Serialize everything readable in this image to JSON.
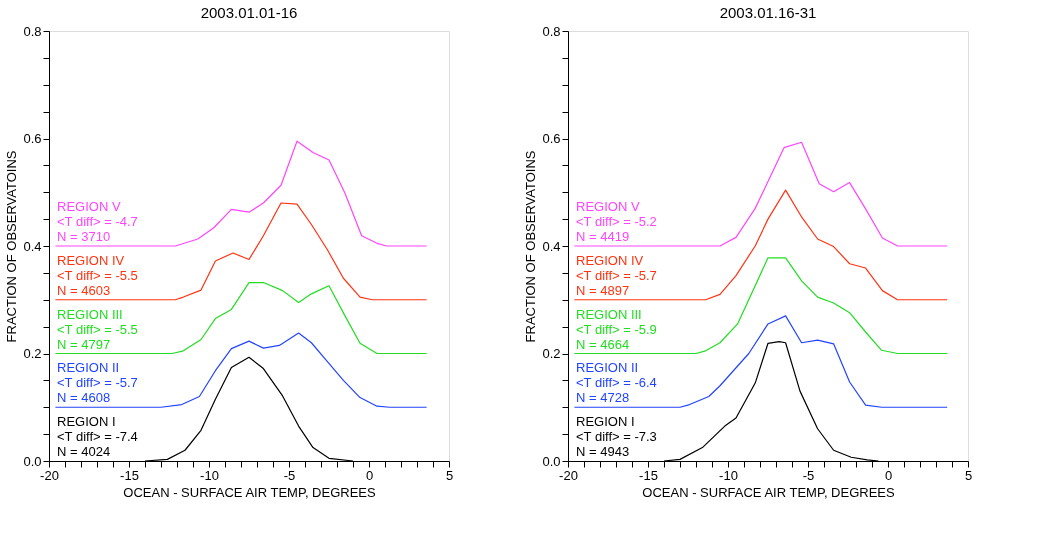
{
  "chart_data": [
    {
      "type": "line",
      "title": "2003.01.01-16",
      "xlabel": "OCEAN - SURFACE AIR TEMP, DEGREES",
      "ylabel": "FRACTION OF OBSERVATOINS",
      "xlim": [
        -20,
        5
      ],
      "ylim": [
        0,
        0.8
      ],
      "grid": false,
      "line_style": "solid",
      "marker": "none",
      "xticks": [
        -20,
        {
          "value": -19,
          "label": null
        },
        {
          "value": -18,
          "label": null
        },
        {
          "value": -17,
          "label": null
        },
        {
          "value": -16,
          "label": null
        },
        -15,
        {
          "value": -14,
          "label": null
        },
        {
          "value": -13,
          "label": null
        },
        {
          "value": -12,
          "label": null
        },
        {
          "value": -11,
          "label": null
        },
        -10,
        {
          "value": -9,
          "label": null
        },
        {
          "value": -8,
          "label": null
        },
        {
          "value": -7,
          "label": null
        },
        {
          "value": -6,
          "label": null
        },
        -5,
        {
          "value": -4,
          "label": null
        },
        {
          "value": -3,
          "label": null
        },
        {
          "value": -2,
          "label": null
        },
        {
          "value": -1,
          "label": null
        },
        0,
        {
          "value": 1,
          "label": null
        },
        {
          "value": 2,
          "label": null
        },
        {
          "value": 3,
          "label": null
        },
        {
          "value": 4,
          "label": null
        },
        5
      ],
      "yticks": [
        {
          "value": 0,
          "label": "0.0"
        },
        {
          "value": 0.05,
          "label": null
        },
        {
          "value": 0.1,
          "label": null
        },
        {
          "value": 0.15,
          "label": null
        },
        {
          "value": 0.2,
          "label": "0.2"
        },
        {
          "value": 0.25,
          "label": null
        },
        {
          "value": 0.3,
          "label": null
        },
        {
          "value": 0.35,
          "label": null
        },
        {
          "value": 0.4,
          "label": "0.4"
        },
        {
          "value": 0.45,
          "label": null
        },
        {
          "value": 0.5,
          "label": null
        },
        {
          "value": 0.55,
          "label": null
        },
        {
          "value": 0.6,
          "label": "0.6"
        },
        {
          "value": 0.65,
          "label": null
        },
        {
          "value": 0.7,
          "label": null
        },
        {
          "value": 0.75,
          "label": null
        },
        {
          "value": 0.8,
          "label": "0.8"
        }
      ],
      "series": [
        {
          "name": "REGION I",
          "color": "#000000",
          "x": [
            -14,
            -12.6,
            -11.5,
            -10.5,
            -9.6,
            -8.6,
            -7.5,
            -6.6,
            -5.4,
            -4.4,
            -3.5,
            -2.5,
            -1.0
          ],
          "values": [
            0,
            0.003,
            0.02,
            0.057,
            0.115,
            0.174,
            0.193,
            0.172,
            0.121,
            0.065,
            0.025,
            0.005,
            0
          ]
        },
        {
          "name": "REGION II",
          "color": "#2244ff",
          "x": [
            -19.6,
            -13.0,
            -11.7,
            -10.6,
            -9.6,
            -8.6,
            -7.5,
            -6.6,
            -5.6,
            -4.4,
            -3.6,
            -2.6,
            -1.6,
            -0.56,
            0.5,
            1.3,
            3.6
          ],
          "values": [
            0.1,
            0.1,
            0.105,
            0.12,
            0.168,
            0.209,
            0.223,
            0.21,
            0.215,
            0.238,
            0.22,
            0.185,
            0.15,
            0.118,
            0.102,
            0.1,
            0.1
          ]
        },
        {
          "name": "REGION III",
          "color": "#22dd22",
          "x": [
            -19.6,
            -12.3,
            -11.6,
            -10.5,
            -9.6,
            -8.6,
            -7.5,
            -6.6,
            -5.4,
            -4.4,
            -3.6,
            -2.5,
            -1.5,
            -0.56,
            0.5,
            3.6
          ],
          "values": [
            0.2,
            0.2,
            0.205,
            0.226,
            0.265,
            0.282,
            0.332,
            0.332,
            0.317,
            0.295,
            0.311,
            0.326,
            0.27,
            0.219,
            0.2,
            0.2
          ]
        },
        {
          "name": "REGION IV",
          "color": "#ff3311",
          "x": [
            -19.6,
            -12.1,
            -11.6,
            -10.5,
            -9.6,
            -8.5,
            -7.5,
            -6.6,
            -5.5,
            -4.5,
            -3.6,
            -2.6,
            -1.6,
            -0.56,
            0.2,
            3.6
          ],
          "values": [
            0.3,
            0.3,
            0.305,
            0.318,
            0.372,
            0.387,
            0.375,
            0.419,
            0.48,
            0.478,
            0.44,
            0.393,
            0.34,
            0.305,
            0.3,
            0.3
          ]
        },
        {
          "name": "REGION V",
          "color": "#ff44ff",
          "x": [
            -19.6,
            -12.1,
            -10.7,
            -9.7,
            -8.6,
            -7.5,
            -6.6,
            -5.5,
            -4.5,
            -3.5,
            -2.5,
            -1.5,
            -0.46,
            0.5,
            1.1,
            3.6
          ],
          "values": [
            0.4,
            0.4,
            0.413,
            0.434,
            0.468,
            0.463,
            0.48,
            0.513,
            0.595,
            0.574,
            0.56,
            0.498,
            0.419,
            0.405,
            0.4,
            0.4
          ]
        }
      ],
      "annotations": [
        "<T diff> = -7.4",
        "N = 4024",
        "<T diff> = -5.7",
        "N = 4608",
        "<T diff> = -5.5",
        "N = 4797",
        "<T diff> = -5.5",
        "N = 4603",
        "<T diff> = -4.7",
        "N = 3710"
      ]
    },
    {
      "type": "line",
      "title": "2003.01.16-31",
      "xlabel": "OCEAN - SURFACE AIR TEMP, DEGREES",
      "ylabel": "FRACTION OF OBSERVATOINS",
      "xlim": [
        -20,
        5
      ],
      "ylim": [
        0,
        0.8
      ],
      "grid": false,
      "line_style": "solid",
      "marker": "none",
      "xticks": [
        -20,
        {
          "value": -19,
          "label": null
        },
        {
          "value": -18,
          "label": null
        },
        {
          "value": -17,
          "label": null
        },
        {
          "value": -16,
          "label": null
        },
        -15,
        {
          "value": -14,
          "label": null
        },
        {
          "value": -13,
          "label": null
        },
        {
          "value": -12,
          "label": null
        },
        {
          "value": -11,
          "label": null
        },
        -10,
        {
          "value": -9,
          "label": null
        },
        {
          "value": -8,
          "label": null
        },
        {
          "value": -7,
          "label": null
        },
        {
          "value": -6,
          "label": null
        },
        -5,
        {
          "value": -4,
          "label": null
        },
        {
          "value": -3,
          "label": null
        },
        {
          "value": -2,
          "label": null
        },
        {
          "value": -1,
          "label": null
        },
        0,
        {
          "value": 1,
          "label": null
        },
        {
          "value": 2,
          "label": null
        },
        {
          "value": 3,
          "label": null
        },
        {
          "value": 4,
          "label": null
        },
        5
      ],
      "yticks": [
        {
          "value": 0,
          "label": "0.0"
        },
        {
          "value": 0.05,
          "label": null
        },
        {
          "value": 0.1,
          "label": null
        },
        {
          "value": 0.15,
          "label": null
        },
        {
          "value": 0.2,
          "label": "0.2"
        },
        {
          "value": 0.25,
          "label": null
        },
        {
          "value": 0.3,
          "label": null
        },
        {
          "value": 0.35,
          "label": null
        },
        {
          "value": 0.4,
          "label": "0.4"
        },
        {
          "value": 0.45,
          "label": null
        },
        {
          "value": 0.5,
          "label": null
        },
        {
          "value": 0.55,
          "label": null
        },
        {
          "value": 0.6,
          "label": "0.6"
        },
        {
          "value": 0.65,
          "label": null
        },
        {
          "value": 0.7,
          "label": null
        },
        {
          "value": 0.75,
          "label": null
        },
        {
          "value": 0.8,
          "label": "0.8"
        }
      ],
      "series": [
        {
          "name": "REGION I",
          "color": "#000000",
          "x": [
            -14,
            -13,
            -11.6,
            -10.2,
            -9.5,
            -8.3,
            -7.5,
            -6.8,
            -6.4,
            -5.5,
            -4.4,
            -3.4,
            -2.3,
            -1.3,
            -0.6
          ],
          "values": [
            0,
            0.003,
            0.025,
            0.065,
            0.08,
            0.145,
            0.219,
            0.222,
            0.22,
            0.13,
            0.06,
            0.02,
            0.007,
            0.002,
            0
          ]
        },
        {
          "name": "REGION II",
          "color": "#2244ff",
          "x": [
            -19.6,
            -13,
            -12.4,
            -11.2,
            -10.5,
            -8.7,
            -7.5,
            -6.4,
            -5.4,
            -4.4,
            -3.4,
            -2.4,
            -1.4,
            -0.4,
            3.7
          ],
          "values": [
            0.1,
            0.1,
            0.105,
            0.12,
            0.14,
            0.2,
            0.255,
            0.27,
            0.22,
            0.225,
            0.218,
            0.147,
            0.104,
            0.1,
            0.1
          ]
        },
        {
          "name": "REGION III",
          "color": "#22dd22",
          "x": [
            -19.6,
            -12,
            -11.4,
            -10.5,
            -9.4,
            -7.5,
            -6.4,
            -5.4,
            -4.4,
            -3.4,
            -2.4,
            -1.4,
            -0.4,
            0.6,
            3.7
          ],
          "values": [
            0.2,
            0.2,
            0.205,
            0.22,
            0.255,
            0.378,
            0.378,
            0.335,
            0.305,
            0.294,
            0.276,
            0.24,
            0.206,
            0.2,
            0.2
          ]
        },
        {
          "name": "REGION IV",
          "color": "#ff3311",
          "x": [
            -19.6,
            -11.4,
            -10.5,
            -9.5,
            -8.3,
            -7.5,
            -6.4,
            -5.4,
            -4.4,
            -3.4,
            -2.4,
            -1.4,
            -0.35,
            0.6,
            3.7
          ],
          "values": [
            0.3,
            0.3,
            0.31,
            0.345,
            0.4,
            0.45,
            0.504,
            0.454,
            0.413,
            0.399,
            0.367,
            0.359,
            0.317,
            0.3,
            0.3
          ]
        },
        {
          "name": "REGION V",
          "color": "#ff44ff",
          "x": [
            -19.6,
            -10.5,
            -9.5,
            -8.3,
            -7.5,
            -6.5,
            -5.4,
            -4.3,
            -3.4,
            -2.4,
            -1.4,
            -0.35,
            0.6,
            3.7
          ],
          "values": [
            0.4,
            0.4,
            0.416,
            0.47,
            0.52,
            0.583,
            0.593,
            0.516,
            0.501,
            0.518,
            0.469,
            0.415,
            0.4,
            0.4
          ]
        }
      ],
      "annotations": [
        "<T diff> = -7.3",
        "N = 4943",
        "<T diff> = -6.4",
        "N = 4728",
        "<T diff> = -5.9",
        "N = 4664",
        "<T diff> = -5.7",
        "N = 4897",
        "<T diff> = -5.2",
        "N = 4419"
      ]
    }
  ]
}
